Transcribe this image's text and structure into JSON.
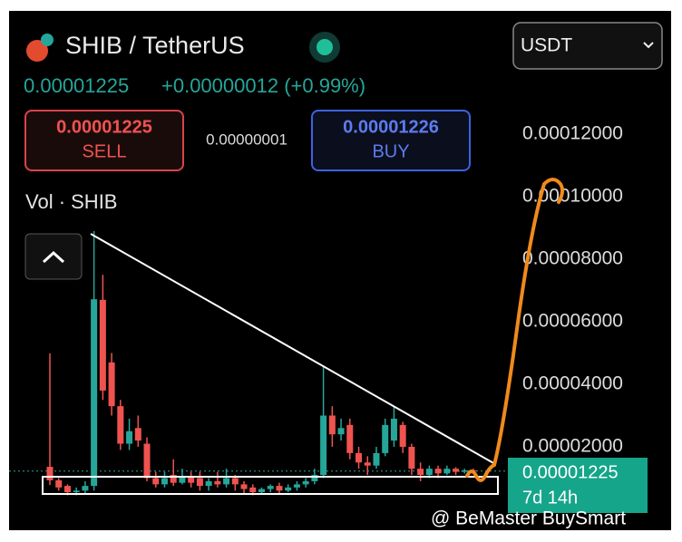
{
  "header": {
    "pair": "SHIB / TetherUS",
    "quote_select": "USDT",
    "last_price": "0.00001225",
    "change": "+0.00000012 (+0.99%)"
  },
  "trade": {
    "sell_price": "0.00001225",
    "sell_label": "SELL",
    "spread": "0.00000001",
    "buy_price": "0.00001226",
    "buy_label": "BUY"
  },
  "chart_data": {
    "type": "candlestick",
    "title": "Vol · SHIB",
    "ylim": [
      -6.67e-06,
      0.00013826
    ],
    "yticks": [
      {
        "value": 2e-05,
        "label": "0.00002000"
      },
      {
        "value": 4e-05,
        "label": "0.00004000"
      },
      {
        "value": 6e-05,
        "label": "0.00006000"
      },
      {
        "value": 8e-05,
        "label": "0.00008000"
      },
      {
        "value": 0.0001,
        "label": "0.00010000"
      },
      {
        "value": 0.00012,
        "label": "0.00012000"
      }
    ],
    "up_color": "#26a69a",
    "down_color": "#ef5350",
    "open": [
      1.36e-05,
      9.3e-06,
      7.5e-06,
      5.5e-06,
      6e-06,
      7.5e-06,
      6.7e-05,
      4.7e-05,
      3.3e-05,
      2.1e-05,
      2.6e-05,
      2.1e-05,
      1e-05,
      8e-06,
      1.1e-05,
      8.5e-06,
      1.05e-05,
      1e-05,
      7.5e-06,
      9e-06,
      8e-06,
      1e-05,
      8e-06,
      7e-06,
      5.5e-06,
      6.5e-06,
      7.5e-06,
      6e-06,
      7e-06,
      8e-06,
      9e-06,
      1.1e-05,
      3e-05,
      2.4e-05,
      2.7e-05,
      1.8e-05,
      1.5e-05,
      1.4e-05,
      1.8e-05,
      2.2e-05,
      2.7e-05,
      2e-05,
      1.3e-05,
      1.1e-05,
      1.3e-05,
      1.15e-05,
      1.3e-05,
      1.2e-05,
      1.25e-05
    ],
    "high": [
      4.99e-05,
      1e-05,
      8e-06,
      7e-06,
      9e-06,
      8.9e-05,
      7.5e-05,
      5e-05,
      3.5e-05,
      2.9e-05,
      3e-05,
      2.3e-05,
      1.2e-05,
      1.2e-05,
      1.6e-05,
      1.3e-05,
      1.2e-05,
      1.2e-05,
      1e-05,
      1.2e-05,
      1.3e-05,
      1.1e-05,
      9e-06,
      8e-06,
      7e-06,
      8e-06,
      8.5e-06,
      8e-06,
      9e-06,
      1e-05,
      1.3e-05,
      4.6e-05,
      3.3e-05,
      2.9e-05,
      2.9e-05,
      2e-05,
      1.7e-05,
      2e-05,
      2.9e-05,
      3.3e-05,
      2.8e-05,
      2.1e-05,
      1.5e-05,
      1.4e-05,
      1.4e-05,
      1.4e-05,
      1.35e-05,
      1.3e-05,
      1.3e-05
    ],
    "low": [
      7.8e-06,
      6e-06,
      4.5e-06,
      4.5e-06,
      5e-06,
      6e-06,
      3.5e-05,
      3e-05,
      1.9e-05,
      1.9e-05,
      2e-05,
      9e-06,
      7e-06,
      7e-06,
      7.5e-06,
      8e-06,
      7e-06,
      6e-06,
      6e-06,
      7e-06,
      7e-06,
      6e-06,
      5e-06,
      4.5e-06,
      5e-06,
      5.5e-06,
      5e-06,
      5.5e-06,
      6e-06,
      7e-06,
      8e-06,
      1e-05,
      2e-05,
      2.2e-05,
      1.6e-05,
      1.3e-05,
      1.1e-05,
      1.3e-05,
      1.7e-05,
      2e-05,
      1.8e-05,
      1.1e-05,
      9e-06,
      1e-05,
      1e-05,
      1.1e-05,
      1.1e-05,
      1.15e-05,
      1.2e-05
    ],
    "close": [
      9.3e-06,
      7e-06,
      5.5e-06,
      6e-06,
      7.5e-06,
      6.72e-05,
      3.8e-05,
      3.3e-05,
      2.1e-05,
      2.5e-05,
      2.2e-05,
      1e-05,
      8e-06,
      1e-05,
      8.5e-06,
      1.05e-05,
      8.5e-06,
      7.5e-06,
      9e-06,
      8e-06,
      1e-05,
      8e-06,
      6.5e-06,
      5.5e-06,
      6.5e-06,
      7.5e-06,
      6e-06,
      7e-06,
      8e-06,
      9e-06,
      1.1e-05,
      3e-05,
      2.4e-05,
      2.6e-05,
      1.8e-05,
      1.5e-05,
      1.4e-05,
      1.8e-05,
      2.7e-05,
      2.9e-05,
      2e-05,
      1.3e-05,
      1.1e-05,
      1.3e-05,
      1.15e-05,
      1.3e-05,
      1.2e-05,
      1.25e-05,
      1.225e-05
    ],
    "last_price": {
      "value": 1.225e-05,
      "label": "0.00001225"
    },
    "countdown": "7d 14h"
  },
  "watermark": "@ BeMaster BuySmart"
}
